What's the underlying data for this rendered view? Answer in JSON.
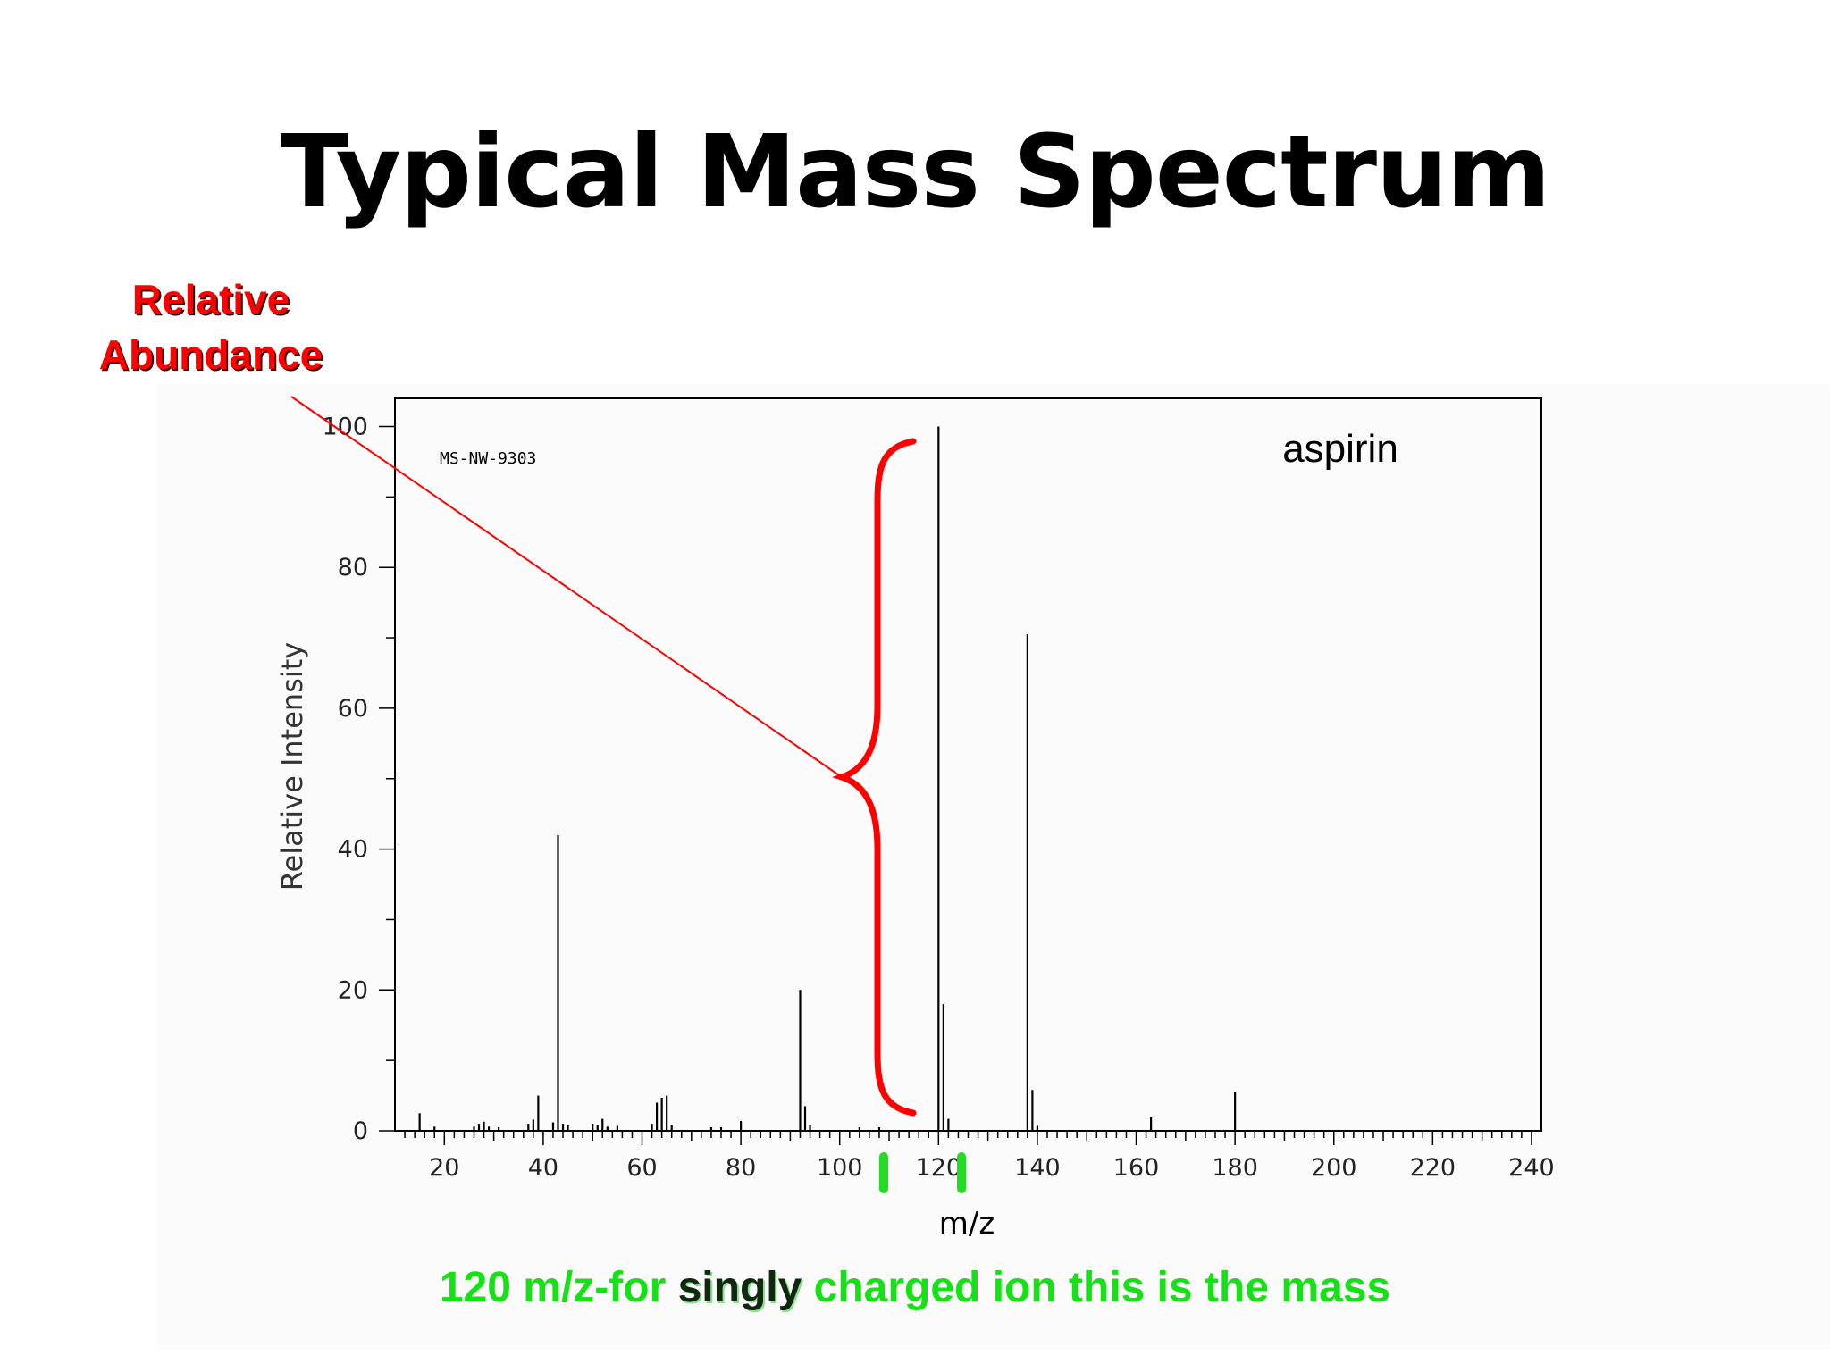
{
  "slide": {
    "title": "Typical Mass Spectrum",
    "callout_line1": "Relative",
    "callout_line2": "Abundance",
    "footnote_before": "120 m/z-for ",
    "footnote_emph": "singly",
    "footnote_after": " charged ion this is the mass"
  },
  "chart_data": {
    "type": "bar",
    "title": "aspirin",
    "source_id": "MS-NW-9303",
    "xlabel": "m/z",
    "ylabel": "Relative Intensity",
    "xlim": [
      10,
      242
    ],
    "ylim": [
      0,
      104
    ],
    "x_ticks": [
      20,
      40,
      60,
      80,
      100,
      120,
      140,
      160,
      180,
      200,
      220,
      240
    ],
    "y_ticks": [
      0,
      20,
      40,
      60,
      80,
      100
    ],
    "x": [
      15,
      18,
      26,
      27,
      28,
      29,
      31,
      37,
      38,
      39,
      42,
      43,
      44,
      45,
      50,
      51,
      52,
      53,
      55,
      62,
      63,
      64,
      65,
      66,
      74,
      76,
      80,
      92,
      93,
      94,
      104,
      108,
      120,
      121,
      122,
      138,
      139,
      140,
      163,
      180
    ],
    "values": [
      2.5,
      0.6,
      0.6,
      1.0,
      1.3,
      0.6,
      0.5,
      1.0,
      1.6,
      5.0,
      1.2,
      42.0,
      1.0,
      0.8,
      1.0,
      0.8,
      1.7,
      0.6,
      0.7,
      1.0,
      4.0,
      4.7,
      5.0,
      0.8,
      0.5,
      0.5,
      1.4,
      20.0,
      3.5,
      0.8,
      0.5,
      0.5,
      100.0,
      18.0,
      1.7,
      70.5,
      5.8,
      0.7,
      1.9,
      5.5
    ],
    "annotation_color": "#ff0000",
    "highlight_color": "#22dd22"
  }
}
